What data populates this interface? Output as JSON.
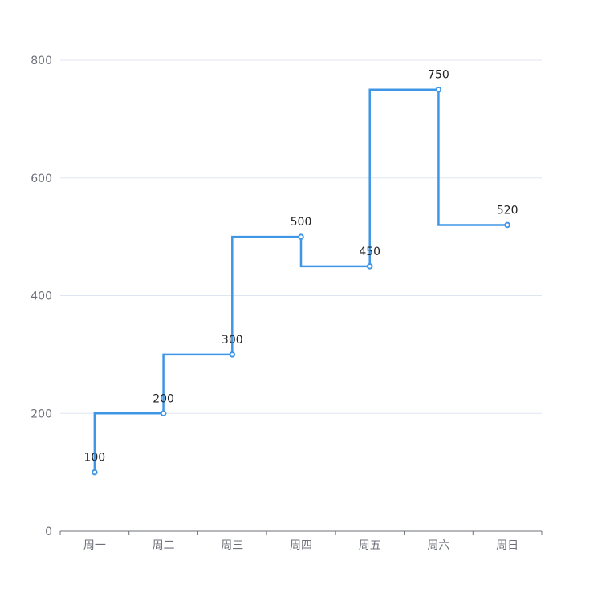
{
  "chart_data": {
    "type": "line",
    "step": "start",
    "categories": [
      "周一",
      "周二",
      "周三",
      "周四",
      "周五",
      "周六",
      "周日"
    ],
    "values": [
      100,
      200,
      300,
      500,
      450,
      750,
      520
    ],
    "ylim": [
      0,
      800
    ],
    "yticks": [
      0,
      200,
      400,
      600,
      800
    ],
    "grid": true,
    "show_data_labels": true,
    "colors": {
      "series": "#4096e6",
      "grid": "#e0e6f1",
      "axis": "#6e7079",
      "label": "#222222",
      "background": "#ffffff"
    }
  }
}
